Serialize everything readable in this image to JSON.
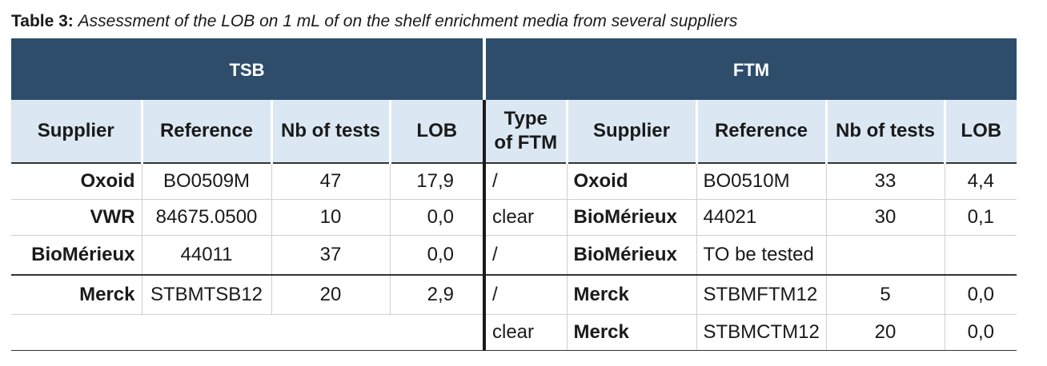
{
  "caption": {
    "label": "Table 3:",
    "text": "Assessment of the LOB on 1 mL of on the shelf enrichment media from several suppliers"
  },
  "groups": {
    "tsb": "TSB",
    "ftm": "FTM"
  },
  "headers": {
    "supplier": "Supplier",
    "reference": "Reference",
    "nb_tests": "Nb of tests",
    "lob": "LOB",
    "type_line1": "Type",
    "type_line2": "of FTM",
    "ftm_supplier": "Supplier",
    "ftm_reference": "Reference",
    "ftm_nb_tests": "Nb of tests",
    "ftm_lob": "LOB"
  },
  "rows": [
    {
      "tsb": {
        "supplier": "Oxoid",
        "reference": "BO0509M",
        "nb": "47",
        "lob": "17,9"
      },
      "ftm": {
        "type": "/",
        "supplier": "Oxoid",
        "reference": "BO0510M",
        "nb": "33",
        "lob": "4,4"
      }
    },
    {
      "tsb": {
        "supplier": "VWR",
        "reference": "84675.0500",
        "nb": "10",
        "lob": "0,0"
      },
      "ftm": {
        "type": "clear",
        "supplier": "BioMérieux",
        "reference": "44021",
        "nb": "30",
        "lob": "0,1"
      }
    },
    {
      "tsb": {
        "supplier": "BioMérieux",
        "reference": "44011",
        "nb": "37",
        "lob": "0,0"
      },
      "ftm": {
        "type": "/",
        "supplier": "BioMérieux",
        "reference": "TO be tested",
        "nb": "",
        "lob": ""
      }
    },
    {
      "tsb": {
        "supplier": "Merck",
        "reference": "STBMTSB12",
        "nb": "20",
        "lob": "2,9"
      },
      "ftm": {
        "type": "/",
        "supplier": "Merck",
        "reference": "STBMFTM12",
        "nb": "5",
        "lob": "0,0"
      }
    },
    {
      "ftm": {
        "type": "clear",
        "supplier": "Merck",
        "reference": "STBMCTM12",
        "nb": "20",
        "lob": "0,0"
      }
    }
  ]
}
